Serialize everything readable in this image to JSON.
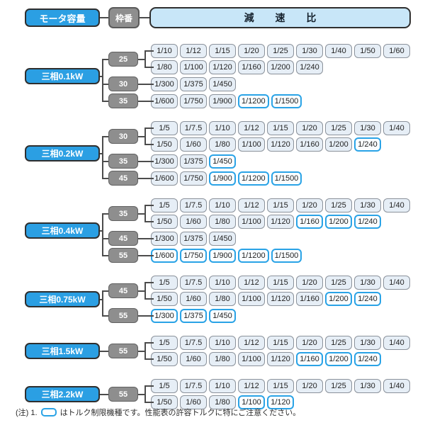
{
  "header": {
    "motor_capacity_label": "モータ容量",
    "frame_no_label": "枠番",
    "ratio_label": "減 速 比"
  },
  "colors": {
    "accent_blue": "#2b9fe3",
    "torque_limited_border": "#2aa3e6",
    "frame_gray": "#8e8e8e",
    "cell_bg": "#e6eef6",
    "ratio_header_bg": "#c8e6f8"
  },
  "sections": [
    {
      "motor": "三相0.1kW",
      "groups": [
        {
          "frame": "25",
          "rows": [
            [
              "1/10",
              "1/12",
              "1/15",
              "1/20",
              "1/25",
              "1/30",
              "1/40",
              "1/50",
              "1/60"
            ],
            [
              "1/80",
              "1/100",
              "1/120",
              "1/160",
              "1/200",
              "1/240"
            ]
          ],
          "torque_limited": []
        },
        {
          "frame": "30",
          "rows": [
            [
              "1/300",
              "1/375",
              "1/450"
            ]
          ],
          "torque_limited": []
        },
        {
          "frame": "35",
          "rows": [
            [
              "1/600",
              "1/750",
              "1/900",
              "1/1200",
              "1/1500"
            ]
          ],
          "torque_limited": [
            "1/1200",
            "1/1500"
          ]
        }
      ]
    },
    {
      "motor": "三相0.2kW",
      "groups": [
        {
          "frame": "30",
          "rows": [
            [
              "1/5",
              "1/7.5",
              "1/10",
              "1/12",
              "1/15",
              "1/20",
              "1/25",
              "1/30",
              "1/40"
            ],
            [
              "1/50",
              "1/60",
              "1/80",
              "1/100",
              "1/120",
              "1/160",
              "1/200",
              "1/240"
            ]
          ],
          "torque_limited": [
            "1/240"
          ]
        },
        {
          "frame": "35",
          "rows": [
            [
              "1/300",
              "1/375",
              "1/450"
            ]
          ],
          "torque_limited": [
            "1/450"
          ]
        },
        {
          "frame": "45",
          "rows": [
            [
              "1/600",
              "1/750",
              "1/900",
              "1/1200",
              "1/1500"
            ]
          ],
          "torque_limited": [
            "1/900",
            "1/1200",
            "1/1500"
          ]
        }
      ]
    },
    {
      "motor": "三相0.4kW",
      "groups": [
        {
          "frame": "35",
          "rows": [
            [
              "1/5",
              "1/7.5",
              "1/10",
              "1/12",
              "1/15",
              "1/20",
              "1/25",
              "1/30",
              "1/40"
            ],
            [
              "1/50",
              "1/60",
              "1/80",
              "1/100",
              "1/120",
              "1/160",
              "1/200",
              "1/240"
            ]
          ],
          "torque_limited": [
            "1/160",
            "1/200",
            "1/240"
          ]
        },
        {
          "frame": "45",
          "rows": [
            [
              "1/300",
              "1/375",
              "1/450"
            ]
          ],
          "torque_limited": []
        },
        {
          "frame": "55",
          "rows": [
            [
              "1/600",
              "1/750",
              "1/900",
              "1/1200",
              "1/1500"
            ]
          ],
          "torque_limited": [
            "1/600",
            "1/750",
            "1/900",
            "1/1200",
            "1/1500"
          ]
        }
      ]
    },
    {
      "motor": "三相0.75kW",
      "groups": [
        {
          "frame": "45",
          "rows": [
            [
              "1/5",
              "1/7.5",
              "1/10",
              "1/12",
              "1/15",
              "1/20",
              "1/25",
              "1/30",
              "1/40"
            ],
            [
              "1/50",
              "1/60",
              "1/80",
              "1/100",
              "1/120",
              "1/160",
              "1/200",
              "1/240"
            ]
          ],
          "torque_limited": [
            "1/200",
            "1/240"
          ]
        },
        {
          "frame": "55",
          "rows": [
            [
              "1/300",
              "1/375",
              "1/450"
            ]
          ],
          "torque_limited": [
            "1/300",
            "1/375",
            "1/450"
          ]
        }
      ]
    },
    {
      "motor": "三相1.5kW",
      "groups": [
        {
          "frame": "55",
          "rows": [
            [
              "1/5",
              "1/7.5",
              "1/10",
              "1/12",
              "1/15",
              "1/20",
              "1/25",
              "1/30",
              "1/40"
            ],
            [
              "1/50",
              "1/60",
              "1/80",
              "1/100",
              "1/120",
              "1/160",
              "1/200",
              "1/240"
            ]
          ],
          "torque_limited": [
            "1/160",
            "1/200",
            "1/240"
          ]
        }
      ]
    },
    {
      "motor": "三相2.2kW",
      "groups": [
        {
          "frame": "55",
          "rows": [
            [
              "1/5",
              "1/7.5",
              "1/10",
              "1/12",
              "1/15",
              "1/20",
              "1/25",
              "1/30",
              "1/40"
            ],
            [
              "1/50",
              "1/60",
              "1/80",
              "1/100",
              "1/120"
            ]
          ],
          "torque_limited": [
            "1/100",
            "1/120"
          ]
        }
      ]
    }
  ],
  "note": {
    "prefix": "(注) 1.",
    "text": "はトルク制限機種です。性能表の許容トルクに特にご注意ください。"
  }
}
